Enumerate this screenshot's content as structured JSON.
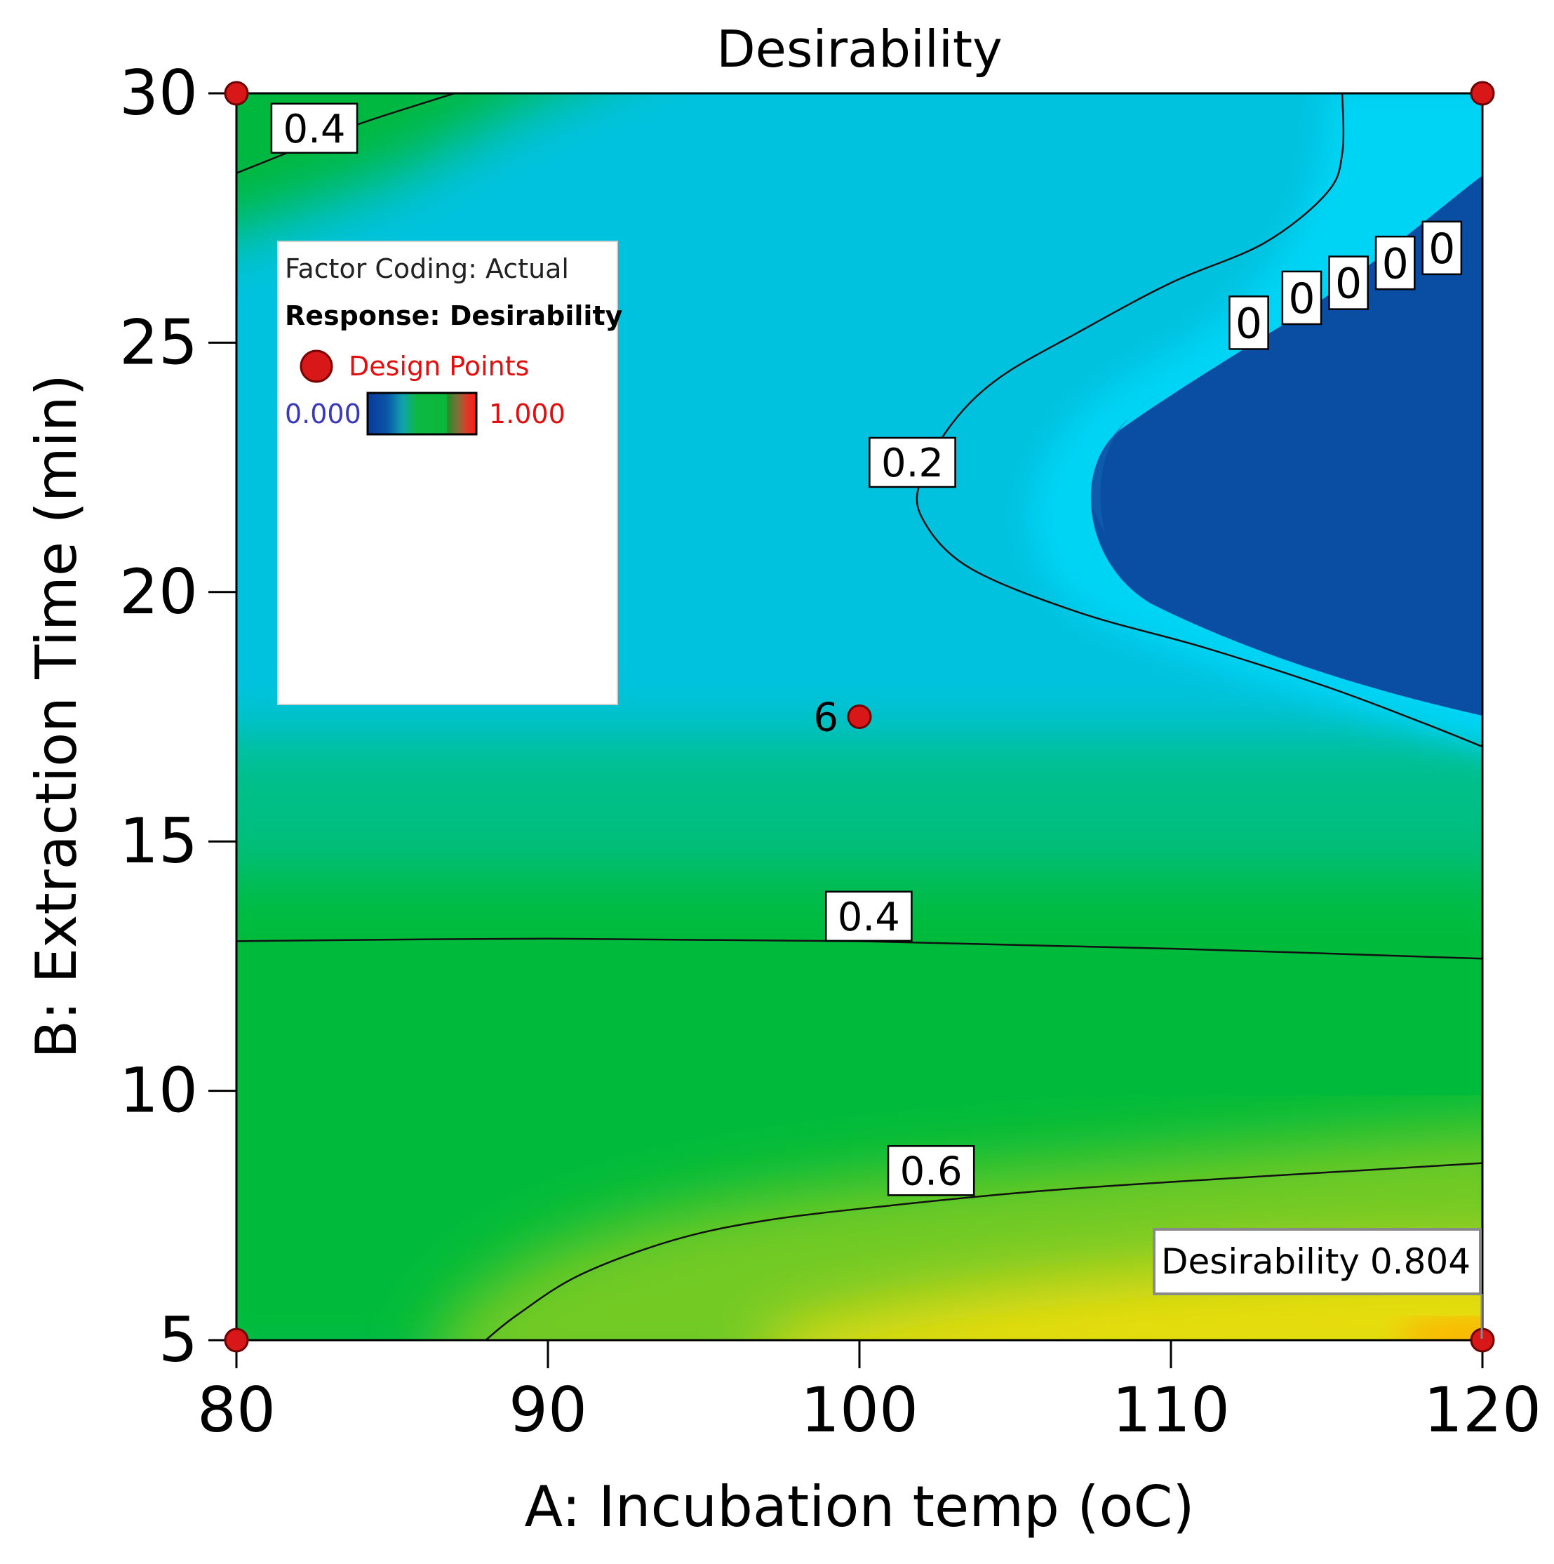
{
  "chart_data": {
    "type": "heatmap",
    "title": "Desirability",
    "xlabel": "A: Incubation temp (oC)",
    "ylabel": "B: Extraction Time (min)",
    "xlim": [
      80,
      120
    ],
    "ylim": [
      5,
      30
    ],
    "x_ticks": [
      "80",
      "90",
      "100",
      "110",
      "120"
    ],
    "x_tick_values": [
      80,
      90,
      100,
      110,
      120
    ],
    "y_ticks": [
      "5",
      "10",
      "15",
      "20",
      "25",
      "30"
    ],
    "y_tick_values": [
      5,
      10,
      15,
      20,
      25,
      30
    ],
    "color_scale": {
      "min_label": "0.000",
      "max_label": "1.000",
      "stops": [
        "#0a4fa3",
        "#00c6e6",
        "#0cbf34",
        "#f0e600",
        "#ff2a1a"
      ]
    },
    "contours": [
      {
        "level": 0.4,
        "label": "0.4",
        "points": [
          [
            80,
            28.4
          ],
          [
            82,
            28.9
          ],
          [
            84,
            29.4
          ],
          [
            87,
            30
          ]
        ],
        "label_at": [
          82.5,
          29.3
        ]
      },
      {
        "level": 0.4,
        "label": "0.4",
        "points": [
          [
            80,
            13.0
          ],
          [
            90,
            13.05
          ],
          [
            100,
            13.0
          ],
          [
            110,
            12.85
          ],
          [
            120,
            12.65
          ]
        ],
        "label_at": [
          100.3,
          13.5
        ]
      },
      {
        "level": 0.6,
        "label": "0.6",
        "points": [
          [
            88,
            5
          ],
          [
            89,
            5.5
          ],
          [
            91,
            6.3
          ],
          [
            94,
            7.0
          ],
          [
            97,
            7.4
          ],
          [
            101,
            7.7
          ],
          [
            106,
            8.0
          ],
          [
            112,
            8.25
          ],
          [
            116,
            8.4
          ],
          [
            120,
            8.55
          ]
        ],
        "label_at": [
          102.3,
          8.4
        ]
      },
      {
        "level": 0.2,
        "label": "0.2",
        "points": [
          [
            115.5,
            30
          ],
          [
            115.5,
            28.8
          ],
          [
            115,
            28
          ],
          [
            113,
            27
          ],
          [
            110,
            26.2
          ],
          [
            107,
            25.2
          ],
          [
            104.5,
            24.3
          ],
          [
            103,
            23.4
          ],
          [
            102,
            22.3
          ],
          [
            102,
            21.5
          ],
          [
            103.5,
            20.5
          ],
          [
            107,
            19.6
          ],
          [
            111,
            18.9
          ],
          [
            115,
            18.1
          ],
          [
            118,
            17.4
          ],
          [
            120,
            16.9
          ]
        ],
        "label_at": [
          101.7,
          22.6
        ]
      }
    ],
    "zero_labels": [
      {
        "label": "0",
        "x": 112.5,
        "y": 25.4
      },
      {
        "label": "0",
        "x": 114.2,
        "y": 25.9
      },
      {
        "label": "0",
        "x": 115.7,
        "y": 26.2
      },
      {
        "label": "0",
        "x": 117.2,
        "y": 26.6
      },
      {
        "label": "0",
        "x": 118.7,
        "y": 26.9
      }
    ],
    "design_points": [
      {
        "x": 80,
        "y": 30,
        "label": ""
      },
      {
        "x": 120,
        "y": 30,
        "label": ""
      },
      {
        "x": 80,
        "y": 5,
        "label": ""
      },
      {
        "x": 120,
        "y": 5,
        "label": ""
      },
      {
        "x": 100,
        "y": 17.5,
        "label": "6"
      }
    ],
    "legend": {
      "position": "upper-left",
      "factor_coding": "Factor Coding: Actual",
      "response": "Response: Desirability",
      "design_points_label": "Design Points",
      "scale_min": "0.000",
      "scale_max": "1.000"
    },
    "annotation": {
      "label": "Desirability",
      "value": "0.804",
      "x": 120,
      "y": 5
    }
  }
}
